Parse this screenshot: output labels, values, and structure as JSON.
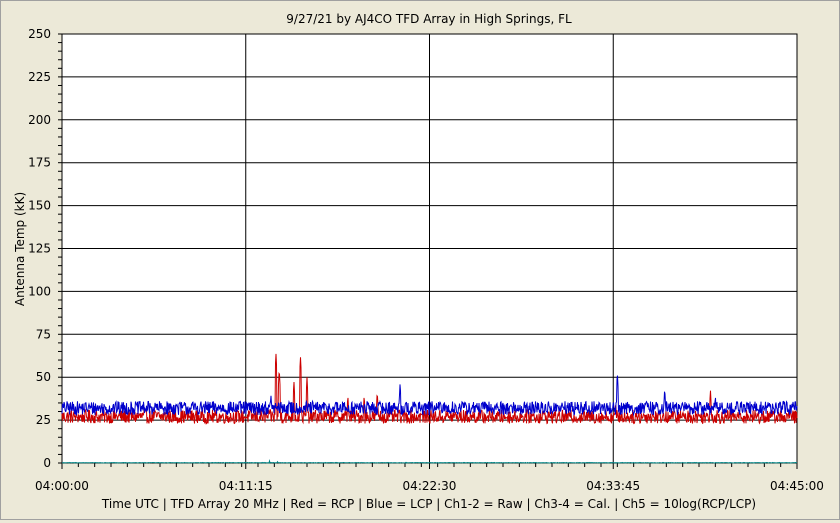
{
  "chart_data": {
    "type": "line",
    "title": "9/27/21  by  AJ4CO TFD Array  in  High Springs, FL",
    "ylabel": "Antenna Temp (kK)",
    "xlabel": "Time UTC | TFD Array 20 MHz | Red = RCP | Blue = LCP | Ch1-2 = Raw | Ch3-4 = Cal. | Ch5 = 10log(RCP/LCP)",
    "ylim": [
      0,
      250
    ],
    "yticks": [
      "0",
      "25",
      "50",
      "75",
      "100",
      "125",
      "150",
      "175",
      "200",
      "225",
      "250"
    ],
    "xticks": [
      "04:00:00",
      "04:11:15",
      "04:22:30",
      "04:33:45",
      "04:45:00"
    ],
    "xlim_minutes": [
      0,
      45
    ],
    "grid": true,
    "colors": {
      "rcp": "#cc0000",
      "lcp": "#0000cc",
      "ratio": "#008080"
    },
    "series": [
      {
        "name": "Red = RCP",
        "baseline": 27,
        "noise": 4,
        "peaks": [
          {
            "t": 13.1,
            "v": 64
          },
          {
            "t": 13.3,
            "v": 55
          },
          {
            "t": 14.2,
            "v": 48
          },
          {
            "t": 14.6,
            "v": 62
          },
          {
            "t": 15.0,
            "v": 50
          },
          {
            "t": 17.5,
            "v": 40
          },
          {
            "t": 18.5,
            "v": 40
          },
          {
            "t": 19.3,
            "v": 42
          },
          {
            "t": 33.9,
            "v": 36
          },
          {
            "t": 39.7,
            "v": 43
          }
        ]
      },
      {
        "name": "Blue = LCP",
        "baseline": 32,
        "noise": 4,
        "peaks": [
          {
            "t": 12.8,
            "v": 40
          },
          {
            "t": 20.7,
            "v": 47
          },
          {
            "t": 34.0,
            "v": 53
          },
          {
            "t": 36.9,
            "v": 44
          },
          {
            "t": 40.0,
            "v": 40
          }
        ]
      },
      {
        "name": "Ch5",
        "baseline": 0,
        "noise": 1,
        "peaks": [
          {
            "t": 12.7,
            "v": 2
          },
          {
            "t": 13.2,
            "v": 2
          }
        ]
      }
    ]
  }
}
